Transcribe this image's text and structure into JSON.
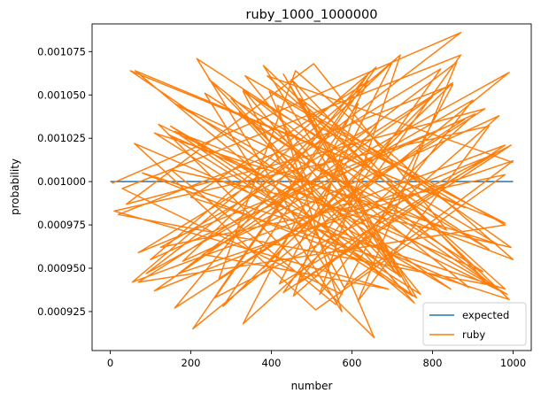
{
  "chart_data": {
    "type": "line",
    "title": "ruby_1000_1000000",
    "xlabel": "number",
    "ylabel": "probability",
    "xlim": [
      -45,
      1045
    ],
    "ylim": [
      0.0009025,
      0.001091
    ],
    "x_ticks": [
      0,
      200,
      400,
      600,
      800,
      1000
    ],
    "x_tick_labels": [
      "0",
      "200",
      "400",
      "600",
      "800",
      "1000"
    ],
    "y_ticks": [
      0.000925,
      0.00095,
      0.000975,
      0.001,
      0.001025,
      0.00105,
      0.001075
    ],
    "y_tick_labels": [
      "0.000925",
      "0.000950",
      "0.000975",
      "0.001000",
      "0.001025",
      "0.001050",
      "0.001075"
    ],
    "legend_position": "lower-right",
    "grid": false,
    "series": [
      {
        "name": "expected",
        "color": "#1f77b4",
        "x": [
          0,
          1000
        ],
        "y": [
          0.001,
          0.001
        ]
      },
      {
        "name": "ruby",
        "color": "#ff7f0e",
        "note_shape": "sequence of (number, probability) observations; values read approximately",
        "x": [
          4,
          870,
          90,
          990,
          205,
          640,
          160,
          930,
          40,
          505,
          835,
          160,
          985,
          120,
          655,
          395,
          880,
          62,
          755,
          300,
          940,
          215,
          575,
          30,
          870,
          465,
          995,
          260,
          660,
          100,
          905,
          330,
          640,
          200,
          990,
          380,
          710,
          150,
          845,
          50,
          980,
          415,
          575,
          235,
          925,
          145,
          770,
          335,
          980,
          70,
          850,
          280,
          615,
          455,
          965,
          180,
          700,
          420,
          955,
          110,
          800,
          380,
          665,
          125,
          980,
          510,
          60,
          890,
          245,
          720,
          470,
          995,
          150,
          560,
          850,
          20,
          950,
          330,
          700,
          430,
          760,
          160,
          1000,
          460,
          270,
          880,
          70,
          820,
          430,
          980,
          55,
          720,
          520,
          900,
          230,
          690,
          10,
          940,
          615,
          860,
          170,
          1000,
          580,
          330,
          960,
          110,
          750,
          450,
          930,
          320,
          660,
          80,
          980,
          390,
          1000
        ],
        "y": [
          0.000999,
          0.001086,
          0.000947,
          0.001063,
          0.000915,
          0.001062,
          0.000927,
          0.001042,
          0.000987,
          0.001068,
          0.000972,
          0.001045,
          0.000935,
          0.001033,
          0.00091,
          0.001052,
          0.000985,
          0.001064,
          0.00093,
          0.001048,
          0.000961,
          0.001071,
          0.000935,
          0.000996,
          0.001073,
          0.000941,
          0.001021,
          0.000933,
          0.001066,
          0.000955,
          0.001039,
          0.000918,
          0.001058,
          0.000991,
          0.000932,
          0.001067,
          0.000947,
          0.001032,
          0.000938,
          0.001064,
          0.000976,
          0.001044,
          0.000925,
          0.001051,
          0.000948,
          0.001027,
          0.000935,
          0.001061,
          0.000975,
          0.000942,
          0.001057,
          0.000928,
          0.001045,
          0.000934,
          0.001038,
          0.000954,
          0.001069,
          0.000941,
          0.001016,
          0.000937,
          0.001049,
          0.00095,
          0.001034,
          0.000962,
          0.001004,
          0.000926,
          0.001022,
          0.000939,
          0.001059,
          0.000945,
          0.001048,
          0.000962,
          0.001007,
          0.000929,
          0.001056,
          0.000981,
          0.00094,
          0.001053,
          0.000951,
          0.001062,
          0.000933,
          0.001029,
          0.000955,
          0.001064,
          0.000944,
          0.001036,
          0.000959,
          0.001065,
          0.000936,
          0.001021,
          0.000942,
          0.001073,
          0.000935,
          0.001047,
          0.000958,
          0.000938,
          0.000983,
          0.001032,
          0.000931,
          0.001069,
          0.000947,
          0.001012,
          0.000939,
          0.001052,
          0.000964,
          0.001028,
          0.000934,
          0.001059,
          0.000943,
          0.00104,
          0.000951,
          0.001005,
          0.000938,
          0.001061,
          0.001011
        ]
      }
    ]
  }
}
